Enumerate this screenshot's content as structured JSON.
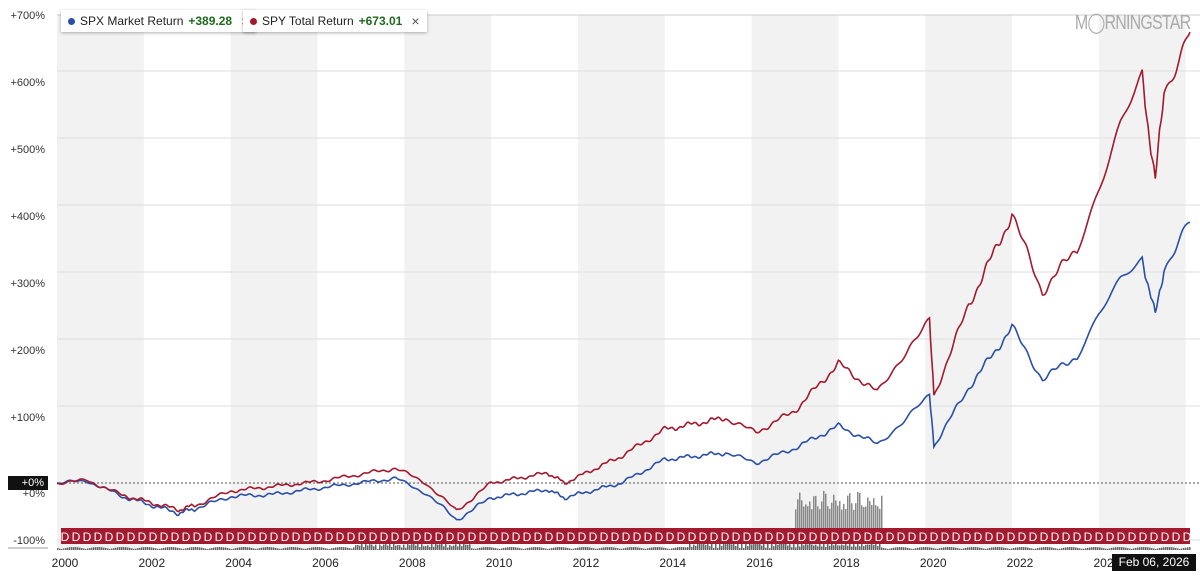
{
  "chart_data": {
    "type": "line",
    "title": "",
    "ylabel": "",
    "xlabel": "",
    "ylim": [
      -100,
      700
    ],
    "yticks": [
      "+700%",
      "+600%",
      "+500%",
      "+400%",
      "+300%",
      "+200%",
      "+100%",
      "+0%",
      "-100%"
    ],
    "ytick_values": [
      700,
      600,
      500,
      400,
      300,
      200,
      100,
      0,
      -100
    ],
    "xticks": [
      "2000",
      "2002",
      "2004",
      "2006",
      "2008",
      "2010",
      "2012",
      "2014",
      "2016",
      "2018",
      "2020",
      "2022",
      "2024"
    ],
    "xtick_values": [
      2000,
      2002,
      2004,
      2006,
      2008,
      2010,
      2012,
      2014,
      2016,
      2018,
      2020,
      2022,
      2024
    ],
    "xlim": [
      2000,
      2026.1
    ],
    "grid": true,
    "legend_position": "top-left",
    "series": [
      {
        "name": "SPX Market Return",
        "value": "+389.28",
        "color": "#2a4fa6",
        "x": [
          2000,
          2000.7,
          2001.5,
          2002.8,
          2003.2,
          2004,
          2005,
          2006,
          2007.8,
          2008.5,
          2009.2,
          2010,
          2011.3,
          2011.7,
          2013,
          2014,
          2015.4,
          2016.1,
          2017,
          2018,
          2018.9,
          2019.5,
          2020.1,
          2020.2,
          2021,
          2022,
          2022.7,
          2023.5,
          2024,
          2024.5,
          2025,
          2025.3,
          2025.5,
          2026.1
        ],
        "y": [
          0,
          3,
          -20,
          -45,
          -38,
          -20,
          -17,
          -8,
          7,
          -15,
          -55,
          -22,
          -10,
          -22,
          0,
          35,
          45,
          30,
          52,
          85,
          58,
          92,
          130,
          55,
          142,
          232,
          155,
          190,
          250,
          300,
          335,
          250,
          320,
          389
        ]
      },
      {
        "name": "SPY Total Return",
        "value": "+673.01",
        "color": "#a31a2e",
        "x": [
          2000,
          2000.7,
          2001.5,
          2002.8,
          2003.2,
          2004,
          2005,
          2006,
          2007.8,
          2008.5,
          2009.2,
          2010,
          2011.3,
          2011.7,
          2013,
          2014,
          2015.4,
          2016.1,
          2017,
          2018,
          2018.9,
          2019.5,
          2020.1,
          2020.2,
          2021,
          2022,
          2022.7,
          2023.5,
          2024,
          2024.5,
          2025,
          2025.3,
          2025.5,
          2026.1
        ],
        "y": [
          0,
          4,
          -18,
          -40,
          -33,
          -12,
          -5,
          2,
          22,
          0,
          -42,
          0,
          15,
          0,
          40,
          80,
          97,
          75,
          108,
          178,
          135,
          192,
          240,
          130,
          265,
          400,
          285,
          352,
          440,
          530,
          605,
          450,
          585,
          673
        ]
      }
    ],
    "annotations": {
      "zero_label": "+0%",
      "current_date": "Feb 06, 2026",
      "dividend_marker": "D"
    }
  },
  "legend": {
    "close": "×"
  },
  "logo": "MORNINGSTAR"
}
